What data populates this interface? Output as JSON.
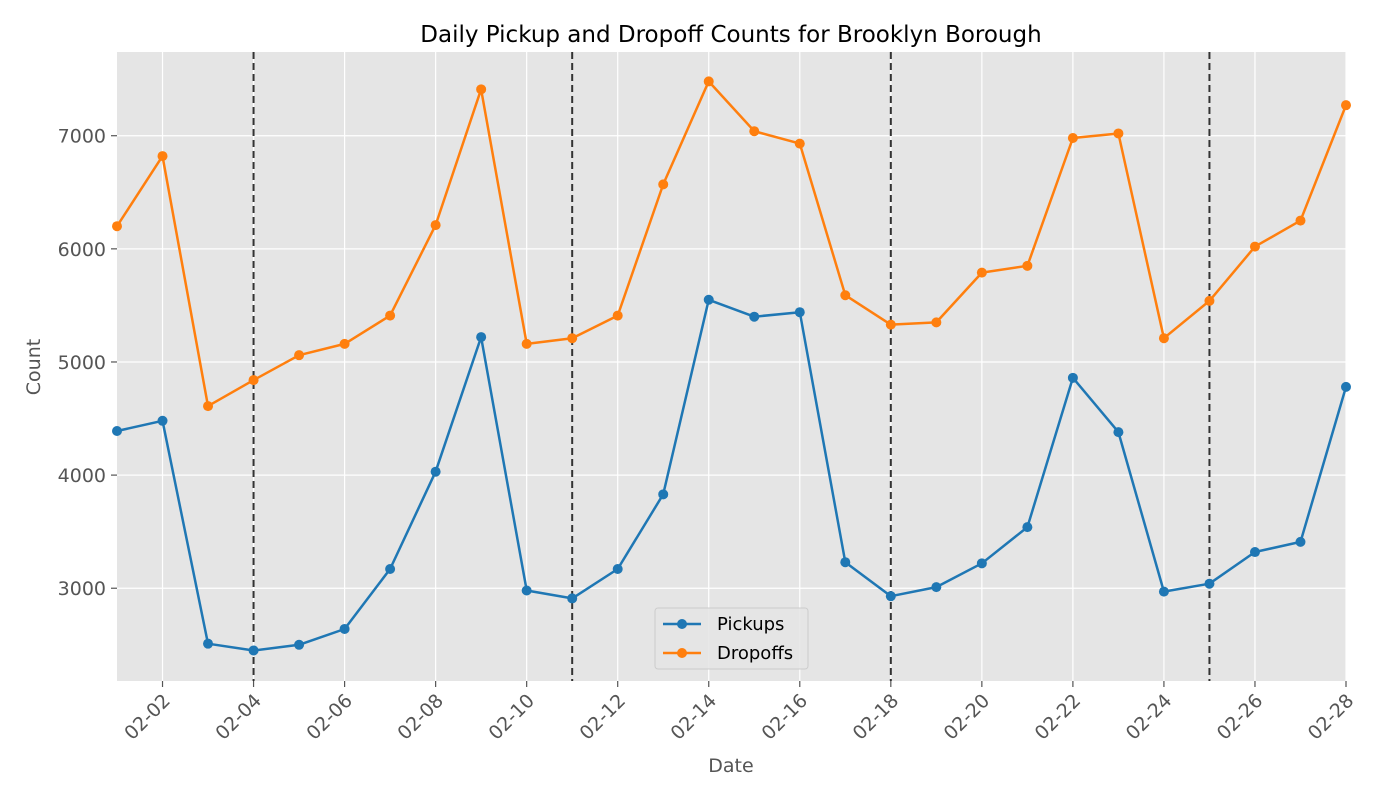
{
  "chart_data": {
    "type": "line",
    "title": "Daily Pickup and Dropoff Counts for Brooklyn Borough",
    "xlabel": "Date",
    "ylabel": "Count",
    "x": [
      "02-01",
      "02-02",
      "02-03",
      "02-04",
      "02-05",
      "02-06",
      "02-07",
      "02-08",
      "02-09",
      "02-10",
      "02-11",
      "02-12",
      "02-13",
      "02-14",
      "02-15",
      "02-16",
      "02-17",
      "02-18",
      "02-19",
      "02-20",
      "02-21",
      "02-22",
      "02-23",
      "02-24",
      "02-25",
      "02-26",
      "02-27",
      "02-28"
    ],
    "xlim": [
      "02-01",
      "02-28"
    ],
    "ylim": [
      2180,
      7740
    ],
    "xticks": [
      "02-02",
      "02-04",
      "02-06",
      "02-08",
      "02-10",
      "02-12",
      "02-14",
      "02-16",
      "02-18",
      "02-20",
      "02-22",
      "02-24",
      "02-26",
      "02-28"
    ],
    "yticks": [
      3000,
      4000,
      5000,
      6000,
      7000
    ],
    "vlines": [
      "02-04",
      "02-11",
      "02-18",
      "02-25"
    ],
    "grid": true,
    "legend_position": "bottom-center",
    "series": [
      {
        "name": "Pickups",
        "color": "#1f77b4",
        "values": [
          4390,
          4480,
          2510,
          2450,
          2500,
          2640,
          3170,
          4030,
          5220,
          2980,
          2910,
          3170,
          3830,
          5550,
          5400,
          5440,
          3230,
          2930,
          3010,
          3220,
          3540,
          4860,
          4380,
          2970,
          3040,
          3320,
          3410,
          4780
        ]
      },
      {
        "name": "Dropoffs",
        "color": "#ff7f0e",
        "values": [
          6200,
          6820,
          4610,
          4840,
          5060,
          5160,
          5410,
          6210,
          7410,
          5160,
          5210,
          5410,
          6570,
          7480,
          7040,
          6930,
          5590,
          5330,
          5350,
          5790,
          5850,
          6980,
          7020,
          5210,
          5540,
          6020,
          6250,
          7270
        ]
      }
    ]
  }
}
